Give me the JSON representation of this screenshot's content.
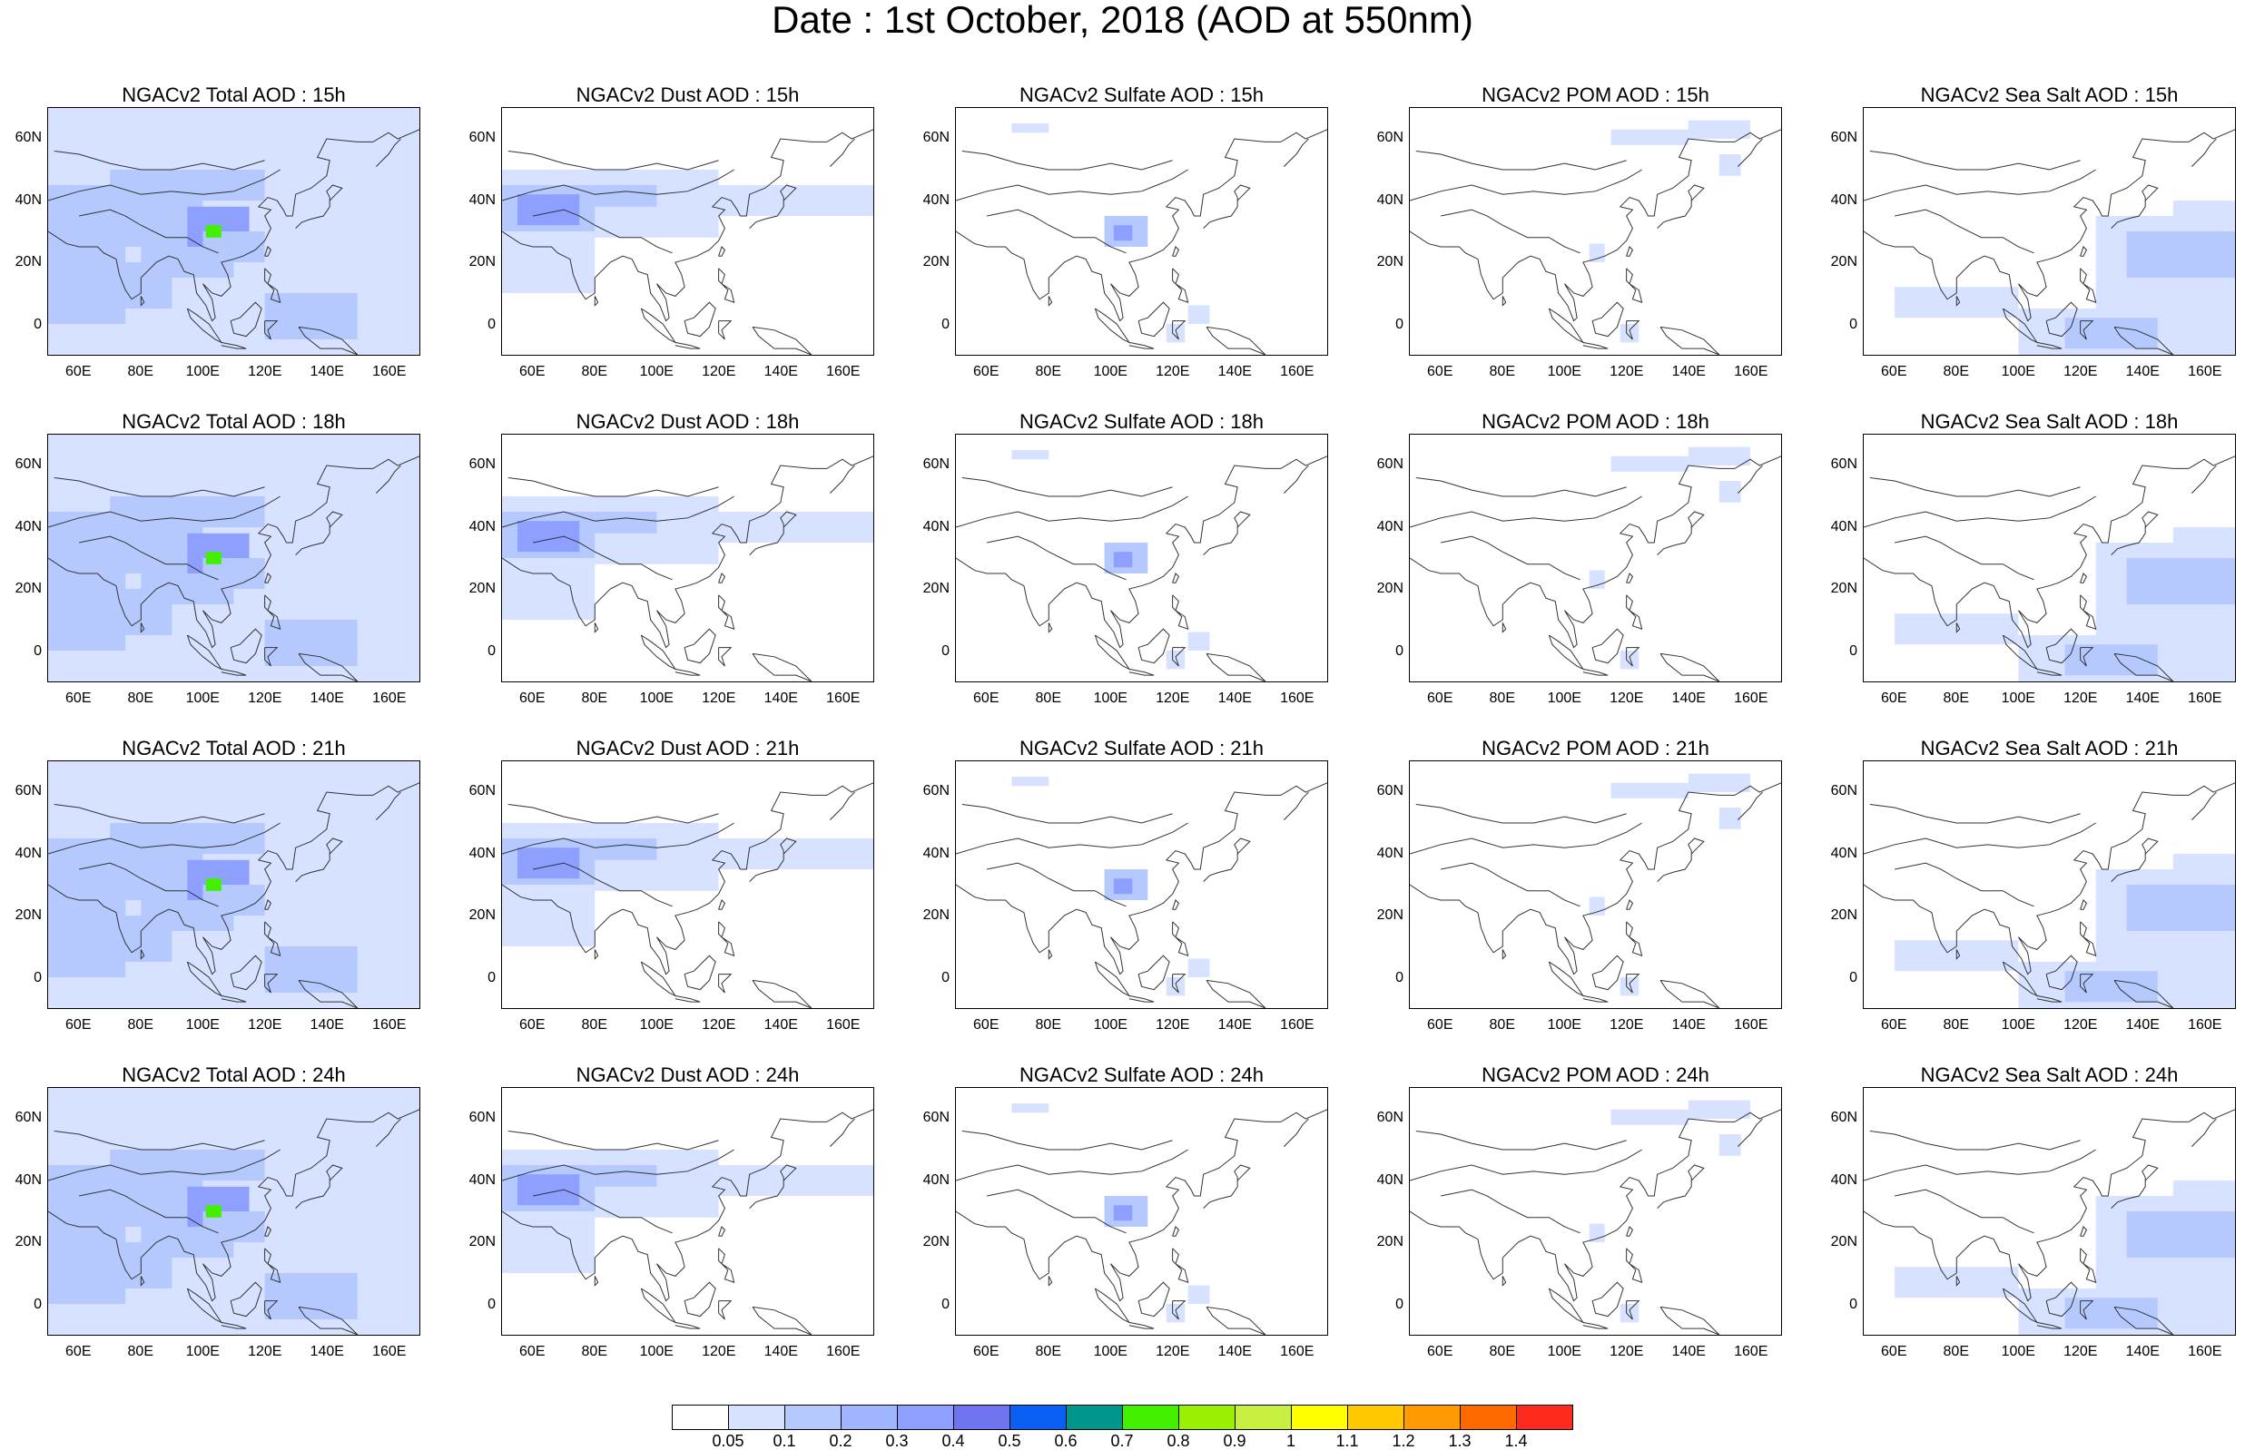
{
  "title": "Date : 1st October, 2018 (AOD at 550nm)",
  "panels": [
    {
      "title": "NGACv2 Total AOD : 15h",
      "type": "total"
    },
    {
      "title": "NGACv2 Dust AOD : 15h",
      "type": "dust"
    },
    {
      "title": "NGACv2 Sulfate AOD : 15h",
      "type": "sulfate"
    },
    {
      "title": "NGACv2 POM AOD : 15h",
      "type": "pom"
    },
    {
      "title": "NGACv2 Sea Salt AOD : 15h",
      "type": "seasalt"
    },
    {
      "title": "NGACv2 Total AOD : 18h",
      "type": "total"
    },
    {
      "title": "NGACv2 Dust AOD : 18h",
      "type": "dust"
    },
    {
      "title": "NGACv2 Sulfate AOD : 18h",
      "type": "sulfate"
    },
    {
      "title": "NGACv2 POM AOD : 18h",
      "type": "pom"
    },
    {
      "title": "NGACv2 Sea Salt AOD : 18h",
      "type": "seasalt"
    },
    {
      "title": "NGACv2 Total AOD : 21h",
      "type": "total"
    },
    {
      "title": "NGACv2 Dust AOD : 21h",
      "type": "dust"
    },
    {
      "title": "NGACv2 Sulfate AOD : 21h",
      "type": "sulfate"
    },
    {
      "title": "NGACv2 POM AOD : 21h",
      "type": "pom"
    },
    {
      "title": "NGACv2 Sea Salt AOD : 21h",
      "type": "seasalt"
    },
    {
      "title": "NGACv2 Total AOD : 24h",
      "type": "total"
    },
    {
      "title": "NGACv2 Dust AOD : 24h",
      "type": "dust"
    },
    {
      "title": "NGACv2 Sulfate AOD : 24h",
      "type": "sulfate"
    },
    {
      "title": "NGACv2 POM AOD : 24h",
      "type": "pom"
    },
    {
      "title": "NGACv2 Sea Salt  AOD : 24h",
      "type": "seasalt"
    }
  ],
  "axes": {
    "lat_labels": [
      "60N",
      "40N",
      "20N",
      "0"
    ],
    "lon_labels": [
      "60E",
      "80E",
      "100E",
      "120E",
      "140E",
      "160E"
    ]
  },
  "colorbar": {
    "colors": [
      "#ffffff",
      "#d6e2ff",
      "#b5c9ff",
      "#a0b5ff",
      "#8ea0ff",
      "#6f75f0",
      "#0a5ff5",
      "#00968c",
      "#42f000",
      "#99f000",
      "#c8f040",
      "#ffff00",
      "#ffc800",
      "#ff9a00",
      "#ff6a00",
      "#ff2a1e"
    ],
    "labels": [
      "0.05",
      "0.1",
      "0.2",
      "0.3",
      "0.4",
      "0.5",
      "0.6",
      "0.7",
      "0.8",
      "0.9",
      "1",
      "1.1",
      "1.2",
      "1.3",
      "1.4"
    ]
  }
}
